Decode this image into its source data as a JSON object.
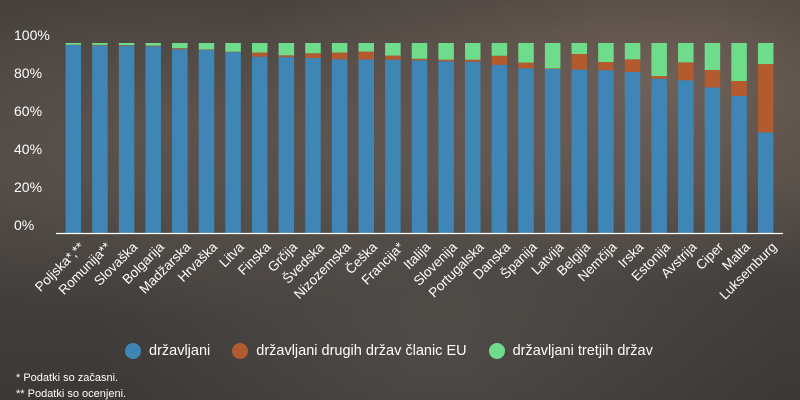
{
  "chart_data": {
    "type": "bar",
    "stacked": true,
    "ylim": [
      0,
      100
    ],
    "yticks": [
      "0%",
      "20%",
      "40%",
      "60%",
      "80%",
      "100%"
    ],
    "categories": [
      "Poljska*,**",
      "Romunija**",
      "Slovaška",
      "Bolgarija",
      "Madžarska",
      "Hrvaška",
      "Litva",
      "Finska",
      "Grčija",
      "Švedska",
      "Nizozemska",
      "Češka",
      "Francija*",
      "Italija",
      "Slovenija",
      "Portugalska",
      "Danska",
      "Španija",
      "Latvija",
      "Belgija",
      "Nemčija",
      "Irska",
      "Estonija",
      "Avstrija",
      "Ciper",
      "Malta",
      "Luksemburg"
    ],
    "series": [
      {
        "name": "državljani",
        "color": "#3f86b7",
        "values": [
          99,
          98.7,
          98.6,
          98.3,
          96.8,
          96.4,
          95.2,
          92.8,
          92.6,
          92.1,
          91.4,
          91.3,
          91.2,
          90.9,
          90.4,
          90.1,
          88.5,
          86.7,
          86.3,
          86.0,
          85.7,
          84.8,
          81.2,
          80.4,
          76.6,
          72.1,
          53.0
        ]
      },
      {
        "name": "državljani drugih držav članic EU",
        "color": "#b35a2f",
        "values": [
          0.1,
          0.3,
          0.3,
          0.3,
          0.5,
          0.2,
          0.2,
          2.2,
          0.9,
          2.5,
          3.6,
          4.2,
          2.2,
          0.8,
          0.8,
          1.1,
          4.8,
          3.0,
          0.3,
          8.2,
          4.3,
          6.6,
          1.4,
          9.4,
          9.2,
          7.9,
          35.9
        ]
      },
      {
        "name": "državljani tretjih držav",
        "color": "#6fdc8c",
        "values": [
          0.9,
          1.0,
          1.1,
          1.4,
          2.7,
          3.4,
          4.6,
          5.0,
          6.5,
          5.4,
          5.0,
          4.5,
          6.6,
          8.3,
          8.8,
          8.8,
          6.7,
          10.3,
          13.4,
          5.8,
          10.0,
          8.6,
          17.4,
          10.2,
          14.2,
          20.0,
          11.1
        ]
      }
    ],
    "legend_placement": "bottom",
    "grid": false
  },
  "footnotes": [
    "* Podatki so začasni.",
    "** Podatki so ocenjeni."
  ]
}
